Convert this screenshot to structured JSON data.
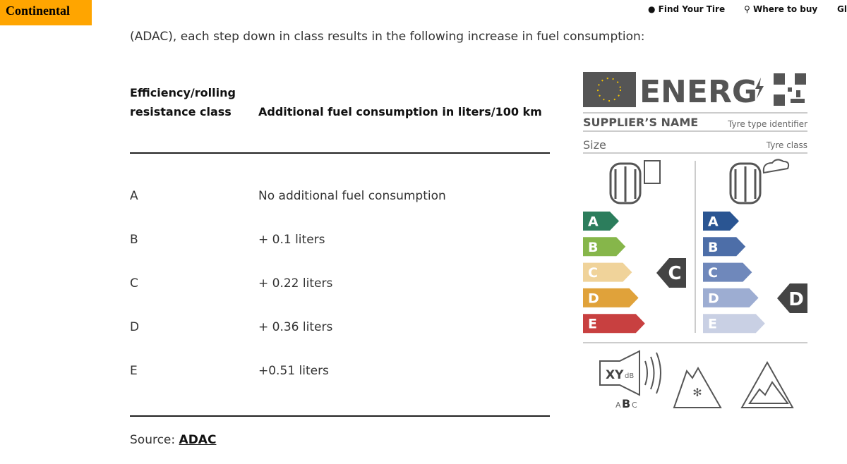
{
  "header": {
    "logo": "Continental",
    "nav": [
      "Find Your Tire",
      "Where to buy",
      "Gl"
    ]
  },
  "intro": "(ADAC), each step down in class results in the following increase in fuel consumption:",
  "table": {
    "headers": [
      "Efficiency/rolling resistance class",
      "Additional fuel consumption in liters/100 km"
    ],
    "rows": [
      [
        "A",
        "No additional fuel consumption"
      ],
      [
        "B",
        "+ 0.1 liters"
      ],
      [
        "C",
        "+ 0.22 liters"
      ],
      [
        "D",
        "+ 0.36 liters"
      ],
      [
        "E",
        "+0.51 liters"
      ]
    ]
  },
  "source": {
    "label": "Source:",
    "link": "ADAC"
  },
  "energy_label": {
    "title": "ENERG",
    "supplier": "SUPPLIER’S NAME",
    "type_id": "Tyre type identifier",
    "size": "Size",
    "tyre_class": "Tyre class",
    "fuel_classes": [
      "A",
      "B",
      "C",
      "D",
      "E"
    ],
    "fuel_rating": "C",
    "wet_classes": [
      "A",
      "B",
      "C",
      "D",
      "E"
    ],
    "wet_rating": "D",
    "noise": {
      "value": "XY",
      "unit": "dB",
      "classes": [
        "A",
        "B",
        "C"
      ]
    }
  }
}
